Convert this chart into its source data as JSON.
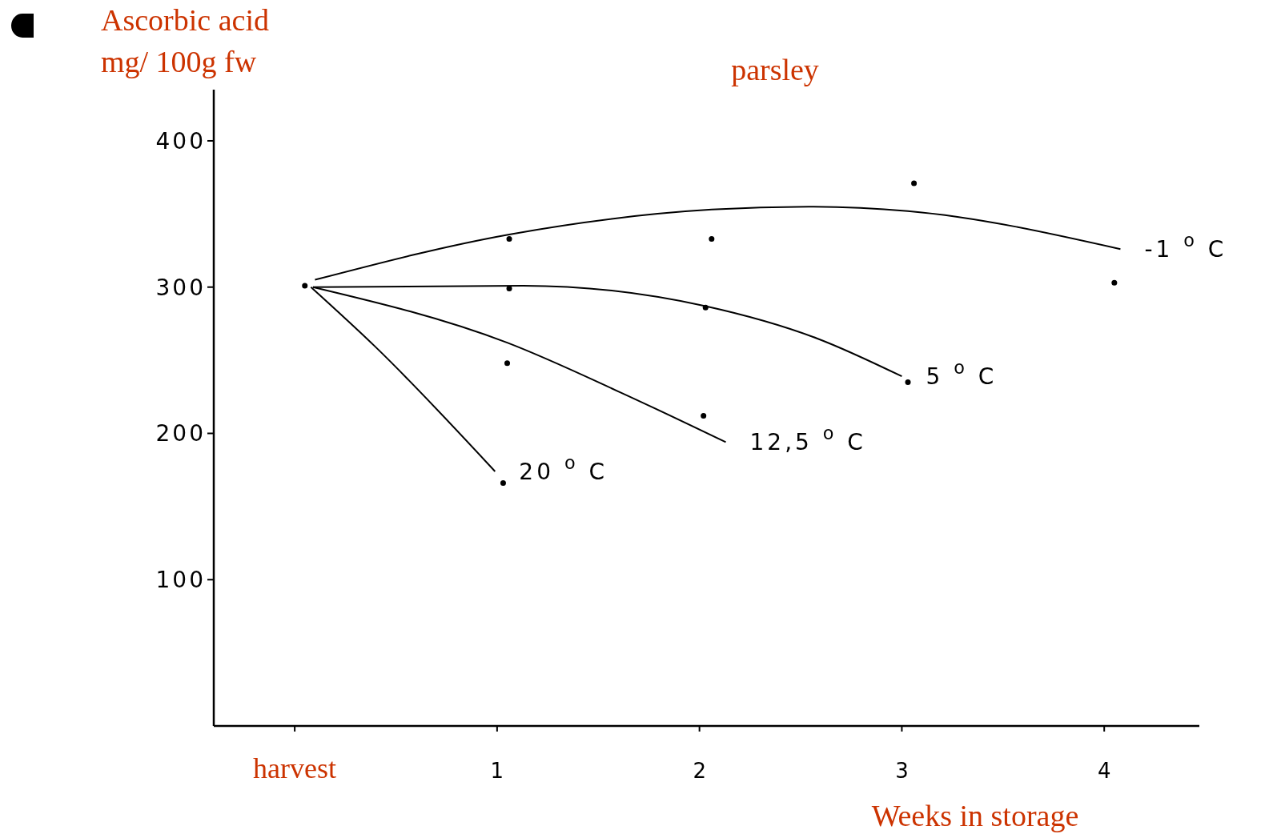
{
  "chart_data": {
    "type": "scatter",
    "title": "parsley",
    "xlabel": "Weeks in storage",
    "ylabel": "Ascorbic acid\nmg/ 100g fw",
    "xlim": [
      -0.4,
      4.47
    ],
    "ylim": [
      0,
      435
    ],
    "xticks": [
      {
        "value": 0,
        "label": "harvest"
      },
      1,
      2,
      3,
      4
    ],
    "yticks": [
      100,
      200,
      300,
      400
    ],
    "grid": false,
    "marker": "circle",
    "series": [
      {
        "color": "#000000",
        "x": [
          0.05,
          1.06,
          1.06,
          1.05,
          1.03,
          2.06,
          2.03,
          2.02,
          3.06,
          3.03,
          4.05
        ],
        "values": [
          301,
          333,
          299,
          248,
          166,
          333,
          286,
          212,
          371,
          235,
          303
        ]
      },
      {
        "type": "line",
        "marker": "none",
        "name": "-1 $^{o}$C",
        "color": "#000000",
        "x": [
          0.1,
          1.06,
          2.06,
          2.54,
          3.03,
          4.08
        ],
        "values": [
          305,
          336,
          353,
          355,
          352,
          326
        ]
      },
      {
        "type": "line",
        "marker": "none",
        "name": "5 $^{o}$C",
        "color": "#000000",
        "x": [
          0.09,
          1.13,
          2.03,
          2.58,
          3.0
        ],
        "values": [
          300,
          301,
          287,
          265,
          239
        ]
      },
      {
        "type": "line",
        "marker": "none",
        "name": "12,5 $^{o}$C",
        "color": "#000000",
        "x": [
          0.09,
          1.05,
          1.61,
          2.13
        ],
        "values": [
          300,
          262,
          228,
          194
        ]
      },
      {
        "type": "line",
        "marker": "none",
        "name": "20 $^{o}$C",
        "color": "#000000",
        "x": [
          0.08,
          0.4,
          0.99
        ],
        "values": [
          300,
          259,
          174
        ]
      }
    ]
  }
}
